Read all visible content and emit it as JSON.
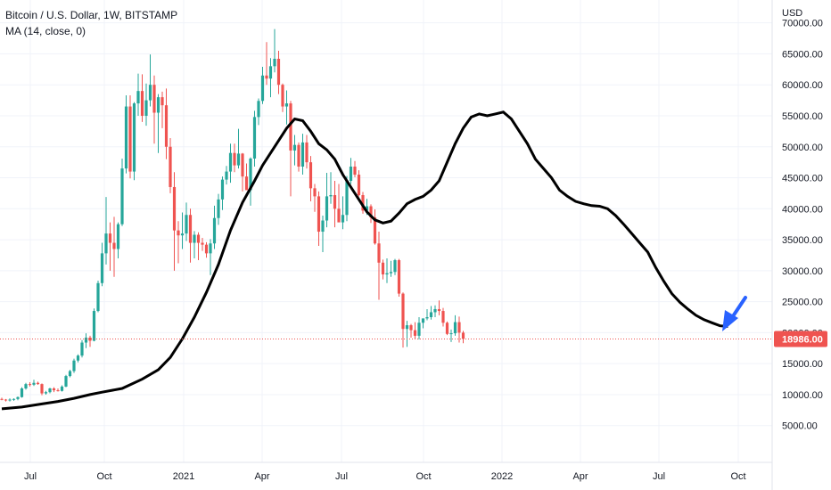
{
  "legend": {
    "title": "Bitcoin / U.S. Dollar, 1W, BITSTAMP",
    "indicator": "MA (14, close, 0)"
  },
  "price_axis": {
    "currency": "USD",
    "ticks": [
      "5000.00",
      "10000.00",
      "15000.00",
      "20000.00",
      "25000.00",
      "30000.00",
      "35000.00",
      "40000.00",
      "45000.00",
      "50000.00",
      "55000.00",
      "60000.00",
      "65000.00",
      "70000.00"
    ],
    "last_price": "18986.00"
  },
  "time_axis": {
    "ticks": [
      "Jul",
      "Oct",
      "2021",
      "Apr",
      "Jul",
      "Oct",
      "2022",
      "Apr",
      "Jul",
      "Oct"
    ]
  },
  "colors": {
    "up": "#26a69a",
    "down": "#ef5350",
    "ma": "#000000",
    "arrow": "#2962ff",
    "last_price": "#ef5350",
    "grid": "#f0f3fa"
  },
  "chart_data": {
    "type": "candlestick",
    "title": "Bitcoin / U.S. Dollar, 1W, BITSTAMP",
    "ylim": [
      0,
      73000
    ],
    "grid": true,
    "series": [
      {
        "name": "Bitcoin / U.S. Dollar",
        "kind": "candles",
        "values": [
          [
            9300,
            9500,
            9100,
            9200
          ],
          [
            9200,
            9300,
            8900,
            9100
          ],
          [
            9100,
            9400,
            8900,
            9200
          ],
          [
            9200,
            9400,
            9000,
            9300
          ],
          [
            9300,
            9700,
            9100,
            9600
          ],
          [
            9600,
            11200,
            9500,
            11000
          ],
          [
            11000,
            11900,
            10800,
            11700
          ],
          [
            11700,
            12000,
            11300,
            11600
          ],
          [
            11600,
            12400,
            11400,
            11900
          ],
          [
            11900,
            12100,
            11600,
            11700
          ],
          [
            11700,
            11800,
            9900,
            10200
          ],
          [
            10200,
            10600,
            10000,
            10400
          ],
          [
            10400,
            11100,
            10200,
            11000
          ],
          [
            11000,
            11200,
            10400,
            10700
          ],
          [
            10700,
            11000,
            10500,
            10600
          ],
          [
            10600,
            11500,
            10500,
            11300
          ],
          [
            11300,
            13200,
            11200,
            13000
          ],
          [
            13000,
            14000,
            12800,
            13800
          ],
          [
            13800,
            15800,
            13500,
            15500
          ],
          [
            15500,
            16500,
            15200,
            16300
          ],
          [
            16300,
            18800,
            16000,
            18400
          ],
          [
            18400,
            19900,
            17500,
            19200
          ],
          [
            19200,
            19500,
            17700,
            18700
          ],
          [
            18700,
            23900,
            18600,
            23500
          ],
          [
            23500,
            28400,
            23300,
            28000
          ],
          [
            28000,
            34500,
            27500,
            32800
          ],
          [
            32800,
            41900,
            31000,
            36000
          ],
          [
            36000,
            37800,
            30000,
            34500
          ],
          [
            34500,
            38700,
            29000,
            33500
          ],
          [
            33500,
            37800,
            32000,
            37500
          ],
          [
            37500,
            48100,
            37200,
            46500
          ],
          [
            46500,
            58300,
            45700,
            56500
          ],
          [
            56500,
            58300,
            44900,
            46000
          ],
          [
            46000,
            57200,
            44600,
            57000
          ],
          [
            57000,
            61800,
            55000,
            59000
          ],
          [
            59000,
            61700,
            54000,
            55000
          ],
          [
            55000,
            60200,
            53400,
            57500
          ],
          [
            57500,
            64900,
            56500,
            60000
          ],
          [
            60000,
            61500,
            50500,
            55500
          ],
          [
            55500,
            58500,
            49000,
            58000
          ],
          [
            58000,
            58900,
            53000,
            56700
          ],
          [
            56700,
            59400,
            48000,
            50000
          ],
          [
            50000,
            51400,
            42500,
            43500
          ],
          [
            43500,
            45900,
            30000,
            36500
          ],
          [
            36500,
            38000,
            31200,
            35700
          ],
          [
            35700,
            39400,
            33500,
            36000
          ],
          [
            36000,
            41000,
            34800,
            39000
          ],
          [
            39000,
            40000,
            31300,
            34500
          ],
          [
            34500,
            36400,
            32000,
            35800
          ],
          [
            35800,
            36200,
            31700,
            34500
          ],
          [
            34500,
            35300,
            33200,
            34200
          ],
          [
            34200,
            34600,
            32100,
            32800
          ],
          [
            32800,
            35100,
            29300,
            34400
          ],
          [
            34400,
            40500,
            33500,
            38500
          ],
          [
            38500,
            42400,
            37400,
            41500
          ],
          [
            41500,
            45200,
            39800,
            44700
          ],
          [
            44700,
            46900,
            43900,
            46000
          ],
          [
            46000,
            50500,
            44200,
            49000
          ],
          [
            49000,
            50500,
            45900,
            47000
          ],
          [
            47000,
            52900,
            46500,
            48900
          ],
          [
            48900,
            49000,
            42800,
            45200
          ],
          [
            45200,
            47300,
            43800,
            43000
          ],
          [
            43000,
            48300,
            40500,
            48100
          ],
          [
            48100,
            55800,
            46800,
            54800
          ],
          [
            54800,
            57800,
            53500,
            57400
          ],
          [
            57400,
            62900,
            56900,
            61500
          ],
          [
            61500,
            66900,
            60000,
            61000
          ],
          [
            61000,
            64300,
            58000,
            63000
          ],
          [
            63000,
            69000,
            62000,
            64200
          ],
          [
            64200,
            65500,
            58500,
            60000
          ],
          [
            60000,
            60200,
            55600,
            56500
          ],
          [
            56500,
            59100,
            53600,
            57000
          ],
          [
            57000,
            57400,
            42000,
            49400
          ],
          [
            49400,
            51900,
            47000,
            50300
          ],
          [
            50300,
            50700,
            46000,
            46800
          ],
          [
            46800,
            52100,
            45500,
            50700
          ],
          [
            50700,
            51900,
            46500,
            47500
          ],
          [
            47500,
            48500,
            41200,
            43300
          ],
          [
            43300,
            44000,
            39500,
            42000
          ],
          [
            42000,
            42800,
            34000,
            36300
          ],
          [
            36300,
            38900,
            33000,
            38100
          ],
          [
            38100,
            45800,
            37000,
            42000
          ],
          [
            42000,
            45900,
            40800,
            42200
          ],
          [
            42200,
            44500,
            37000,
            40000
          ],
          [
            40000,
            44000,
            38000,
            37800
          ],
          [
            37800,
            42000,
            36700,
            39000
          ],
          [
            39000,
            45300,
            38000,
            44500
          ],
          [
            44500,
            48200,
            44000,
            46800
          ],
          [
            46800,
            47700,
            45100,
            45500
          ],
          [
            45500,
            46200,
            42000,
            42200
          ],
          [
            42200,
            42700,
            39200,
            39700
          ],
          [
            39700,
            41600,
            39000,
            40400
          ],
          [
            40400,
            40700,
            37700,
            38600
          ],
          [
            38600,
            39900,
            34200,
            34400
          ],
          [
            34400,
            36300,
            25300,
            31300
          ],
          [
            31300,
            31800,
            28600,
            29400
          ],
          [
            29400,
            32000,
            28000,
            29600
          ],
          [
            29600,
            31600,
            29000,
            29800
          ],
          [
            29800,
            31900,
            29300,
            31700
          ],
          [
            31700,
            31900,
            25800,
            26300
          ],
          [
            26300,
            26500,
            17600,
            20600
          ],
          [
            20600,
            21900,
            17700,
            21200
          ],
          [
            21200,
            21400,
            19200,
            20400
          ],
          [
            20400,
            21700,
            19000,
            19500
          ],
          [
            19500,
            22500,
            18900,
            21600
          ],
          [
            21600,
            22300,
            20700,
            22300
          ],
          [
            22300,
            23800,
            22000,
            22500
          ],
          [
            22500,
            24300,
            22100,
            23300
          ],
          [
            23300,
            24400,
            22500,
            23800
          ],
          [
            23800,
            25200,
            22800,
            23500
          ],
          [
            23500,
            24000,
            21000,
            21600
          ],
          [
            21600,
            21800,
            19600,
            19800
          ],
          [
            19800,
            20500,
            18500,
            19900
          ],
          [
            19900,
            22800,
            19500,
            21700
          ],
          [
            21700,
            22600,
            18400,
            20000
          ],
          [
            20000,
            20300,
            18300,
            19000
          ]
        ]
      },
      {
        "name": "MA (14, close, 0)",
        "kind": "line",
        "values": [
          [
            0,
            7700
          ],
          [
            5,
            8000
          ],
          [
            10,
            8500
          ],
          [
            14,
            8900
          ],
          [
            18,
            9400
          ],
          [
            22,
            10000
          ],
          [
            25,
            10400
          ],
          [
            30,
            11000
          ],
          [
            35,
            12500
          ],
          [
            39,
            14000
          ],
          [
            42,
            16000
          ],
          [
            45,
            19000
          ],
          [
            48,
            22500
          ],
          [
            51,
            26500
          ],
          [
            54,
            31000
          ],
          [
            57,
            36500
          ],
          [
            60,
            41000
          ],
          [
            63,
            44500
          ],
          [
            65,
            47000
          ],
          [
            67,
            49000
          ],
          [
            69,
            51000
          ],
          [
            71,
            53000
          ],
          [
            73,
            54500
          ],
          [
            75,
            54200
          ],
          [
            77,
            52500
          ],
          [
            79,
            50500
          ],
          [
            81,
            49500
          ],
          [
            83,
            48000
          ],
          [
            85,
            45500
          ],
          [
            87,
            43500
          ],
          [
            89,
            41500
          ],
          [
            91,
            39500
          ],
          [
            93,
            38200
          ],
          [
            95,
            37700
          ],
          [
            97,
            38000
          ],
          [
            99,
            39300
          ],
          [
            101,
            40800
          ],
          [
            103,
            41500
          ],
          [
            105,
            42000
          ],
          [
            107,
            43000
          ],
          [
            109,
            44500
          ],
          [
            111,
            47500
          ],
          [
            113,
            50500
          ],
          [
            115,
            53000
          ],
          [
            117,
            54800
          ],
          [
            119,
            55300
          ],
          [
            121,
            55000
          ],
          [
            123,
            55300
          ],
          [
            125,
            55600
          ],
          [
            127,
            54500
          ],
          [
            129,
            52500
          ],
          [
            131,
            50500
          ],
          [
            133,
            48000
          ],
          [
            135,
            46500
          ],
          [
            137,
            45000
          ],
          [
            139,
            43000
          ],
          [
            141,
            42000
          ],
          [
            143,
            41200
          ],
          [
            145,
            40800
          ],
          [
            147,
            40500
          ],
          [
            149,
            40400
          ],
          [
            151,
            40000
          ],
          [
            153,
            38900
          ],
          [
            155,
            37500
          ],
          [
            157,
            36000
          ],
          [
            159,
            34500
          ],
          [
            161,
            33000
          ],
          [
            163,
            30500
          ],
          [
            165,
            28300
          ],
          [
            167,
            26300
          ],
          [
            169,
            24900
          ],
          [
            171,
            23800
          ],
          [
            173,
            22800
          ],
          [
            175,
            22100
          ],
          [
            177,
            21600
          ],
          [
            179,
            21100
          ],
          [
            181,
            21000
          ]
        ]
      }
    ],
    "annotations": [
      {
        "type": "arrow",
        "color": "#2962ff",
        "direction": "down-left"
      }
    ]
  }
}
